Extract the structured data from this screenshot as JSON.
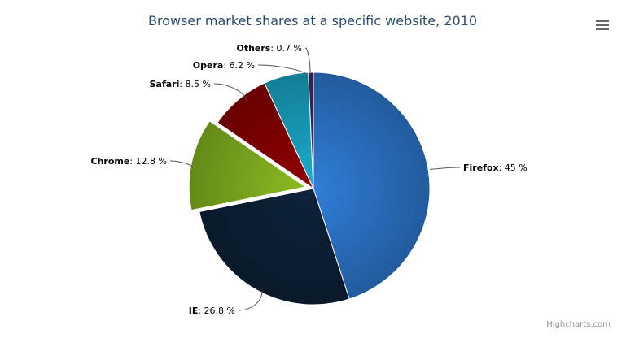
{
  "chart_data": {
    "type": "pie",
    "title": "Browser market shares at a specific website, 2010",
    "unit": "%",
    "slices": [
      {
        "name": "Firefox",
        "value": 45.0,
        "color": "#2f7ed8"
      },
      {
        "name": "IE",
        "value": 26.8,
        "color": "#0d233a"
      },
      {
        "name": "Chrome",
        "value": 12.8,
        "color": "#8bbc21",
        "sliced": true
      },
      {
        "name": "Safari",
        "value": 8.5,
        "color": "#910000"
      },
      {
        "name": "Opera",
        "value": 6.2,
        "color": "#1aadce"
      },
      {
        "name": "Others",
        "value": 0.7,
        "color": "#492970"
      }
    ]
  },
  "labels": [
    "Firefox",
    "45 %",
    "IE",
    "26.8 %",
    "Chrome",
    "12.8 %",
    "Safari",
    "8.5 %",
    "Opera",
    "6.2 %",
    "Others",
    "0.7 %"
  ],
  "credits": "Highcharts.com",
  "menu_icon": "hamburger-menu-icon"
}
